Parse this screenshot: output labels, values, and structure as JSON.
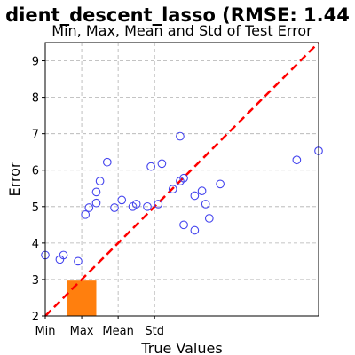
{
  "chart_data": {
    "type": "scatter",
    "title": "dient_descent_lasso (RMSE: 1.44",
    "subtitle": "Min, Max, Mean and Std of Test Error",
    "xlabel": "True Values",
    "ylabel": "Error",
    "xlim": [
      0,
      7.5
    ],
    "ylim": [
      2,
      9.5
    ],
    "x_ticks": [
      {
        "value": 0,
        "label": "Min"
      },
      {
        "value": 1,
        "label": "Max"
      },
      {
        "value": 2,
        "label": "Mean"
      },
      {
        "value": 3,
        "label": "Std"
      }
    ],
    "y_ticks": [
      2,
      3,
      4,
      5,
      6,
      7,
      8,
      9
    ],
    "grid": true,
    "reference_line": {
      "from": [
        0,
        2
      ],
      "to": [
        7.5,
        9.5
      ],
      "color": "#ff0000",
      "style": "dashed"
    },
    "bar": {
      "x_start": 0.6,
      "x_end": 1.4,
      "value": 2.97,
      "color": "#ff7f0e"
    },
    "points": [
      {
        "x": 0.0,
        "y": 3.67
      },
      {
        "x": 0.4,
        "y": 3.55
      },
      {
        "x": 0.5,
        "y": 3.67
      },
      {
        "x": 0.9,
        "y": 3.5
      },
      {
        "x": 1.1,
        "y": 4.78
      },
      {
        "x": 1.2,
        "y": 4.97
      },
      {
        "x": 1.4,
        "y": 5.1
      },
      {
        "x": 1.4,
        "y": 5.4
      },
      {
        "x": 1.5,
        "y": 5.7
      },
      {
        "x": 1.7,
        "y": 6.22
      },
      {
        "x": 1.9,
        "y": 4.97
      },
      {
        "x": 2.1,
        "y": 5.18
      },
      {
        "x": 2.4,
        "y": 5.0
      },
      {
        "x": 2.5,
        "y": 5.07
      },
      {
        "x": 2.8,
        "y": 5.0
      },
      {
        "x": 2.9,
        "y": 6.1
      },
      {
        "x": 3.1,
        "y": 5.07
      },
      {
        "x": 3.2,
        "y": 6.18
      },
      {
        "x": 3.5,
        "y": 5.48
      },
      {
        "x": 3.7,
        "y": 5.7
      },
      {
        "x": 3.7,
        "y": 6.93
      },
      {
        "x": 3.8,
        "y": 4.5
      },
      {
        "x": 3.8,
        "y": 5.78
      },
      {
        "x": 4.1,
        "y": 4.35
      },
      {
        "x": 4.1,
        "y": 5.3
      },
      {
        "x": 4.3,
        "y": 5.43
      },
      {
        "x": 4.4,
        "y": 5.07
      },
      {
        "x": 4.5,
        "y": 4.68
      },
      {
        "x": 4.8,
        "y": 5.62
      },
      {
        "x": 6.9,
        "y": 6.28
      },
      {
        "x": 7.5,
        "y": 6.53
      }
    ],
    "colors": {
      "points": "#4444ee",
      "line": "#ff0000",
      "bar": "#ff7f0e"
    }
  }
}
